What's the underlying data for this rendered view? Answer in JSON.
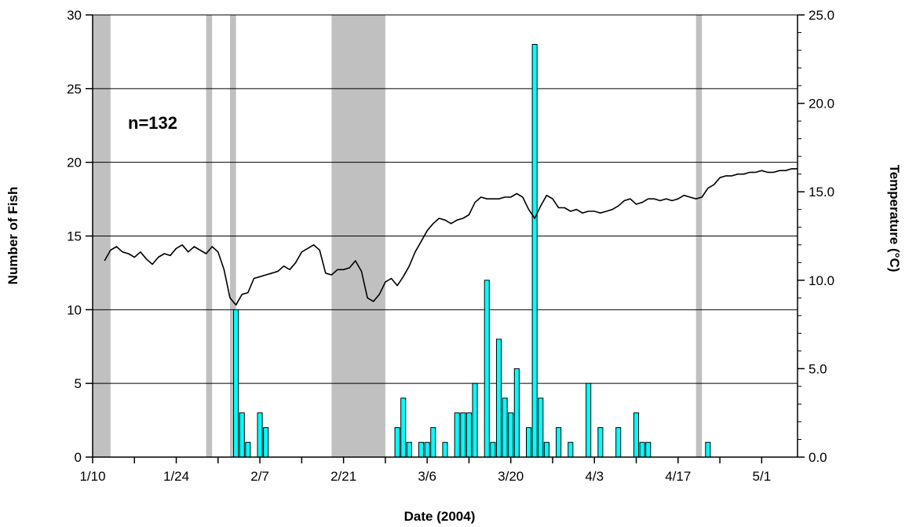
{
  "chart_data": {
    "type": "bar",
    "title": "",
    "xlabel": "Date (2004)",
    "ylabel": "Number of Fish",
    "y2label": "Temperature (°C)",
    "annotation": "n=132",
    "x_start": "1/10",
    "x_end": "5/7",
    "x_tick_labels": [
      "1/10",
      "1/24",
      "2/7",
      "2/21",
      "3/6",
      "3/20",
      "4/3",
      "4/17",
      "5/1"
    ],
    "ylim": [
      0,
      30
    ],
    "y_ticks": [
      0,
      5,
      10,
      15,
      20,
      25,
      30
    ],
    "y2lim": [
      0.0,
      25.0
    ],
    "y2_ticks": [
      "0.0",
      "5.0",
      "10.0",
      "15.0",
      "20.0",
      "25.0"
    ],
    "grid": true,
    "colors": {
      "bars": "#00ffff",
      "bar_edge": "#000000",
      "shaded": "#c0c0c0",
      "temperature_line": "#000000",
      "grid": "#000000"
    },
    "shaded_periods": [
      [
        "1/10",
        "1/13"
      ],
      [
        "1/29",
        "1/30"
      ],
      [
        "2/2",
        "2/3"
      ],
      [
        "2/19",
        "2/28"
      ],
      [
        "4/20",
        "4/21"
      ]
    ],
    "series": [
      {
        "type": "bar",
        "axis": "left",
        "points": [
          [
            "2/3",
            10
          ],
          [
            "2/4",
            3
          ],
          [
            "2/5",
            1
          ],
          [
            "2/7",
            3
          ],
          [
            "2/8",
            2
          ],
          [
            "3/1",
            2
          ],
          [
            "3/2",
            4
          ],
          [
            "3/3",
            1
          ],
          [
            "3/5",
            1
          ],
          [
            "3/6",
            1
          ],
          [
            "3/7",
            2
          ],
          [
            "3/9",
            1
          ],
          [
            "3/11",
            3
          ],
          [
            "3/12",
            3
          ],
          [
            "3/13",
            3
          ],
          [
            "3/14",
            5
          ],
          [
            "3/16",
            12
          ],
          [
            "3/17",
            1
          ],
          [
            "3/18",
            8
          ],
          [
            "3/19",
            4
          ],
          [
            "3/20",
            3
          ],
          [
            "3/21",
            6
          ],
          [
            "3/23",
            2
          ],
          [
            "3/24",
            28
          ],
          [
            "3/25",
            4
          ],
          [
            "3/26",
            1
          ],
          [
            "3/28",
            2
          ],
          [
            "3/30",
            1
          ],
          [
            "4/2",
            5
          ],
          [
            "4/4",
            2
          ],
          [
            "4/7",
            2
          ],
          [
            "4/10",
            3
          ],
          [
            "4/11",
            1
          ],
          [
            "4/12",
            1
          ],
          [
            "4/22",
            1
          ]
        ]
      },
      {
        "type": "line",
        "axis": "right",
        "points": [
          [
            "1/12",
            11.1
          ],
          [
            "1/13",
            11.7
          ],
          [
            "1/14",
            11.9
          ],
          [
            "1/15",
            11.6
          ],
          [
            "1/16",
            11.5
          ],
          [
            "1/17",
            11.3
          ],
          [
            "1/18",
            11.6
          ],
          [
            "1/19",
            11.2
          ],
          [
            "1/20",
            10.9
          ],
          [
            "1/21",
            11.3
          ],
          [
            "1/22",
            11.5
          ],
          [
            "1/23",
            11.4
          ],
          [
            "1/24",
            11.8
          ],
          [
            "1/25",
            12.0
          ],
          [
            "1/26",
            11.6
          ],
          [
            "1/27",
            11.9
          ],
          [
            "1/28",
            11.7
          ],
          [
            "1/29",
            11.5
          ],
          [
            "1/30",
            11.9
          ],
          [
            "1/31",
            11.6
          ],
          [
            "2/1",
            10.6
          ],
          [
            "2/2",
            9.0
          ],
          [
            "2/3",
            8.6
          ],
          [
            "2/4",
            9.2
          ],
          [
            "2/5",
            9.3
          ],
          [
            "2/6",
            10.1
          ],
          [
            "2/7",
            10.2
          ],
          [
            "2/8",
            10.3
          ],
          [
            "2/9",
            10.4
          ],
          [
            "2/10",
            10.5
          ],
          [
            "2/11",
            10.8
          ],
          [
            "2/12",
            10.6
          ],
          [
            "2/13",
            11.0
          ],
          [
            "2/14",
            11.6
          ],
          [
            "2/15",
            11.8
          ],
          [
            "2/16",
            12.0
          ],
          [
            "2/17",
            11.7
          ],
          [
            "2/18",
            10.4
          ],
          [
            "2/19",
            10.3
          ],
          [
            "2/20",
            10.6
          ],
          [
            "2/21",
            10.6
          ],
          [
            "2/22",
            10.7
          ],
          [
            "2/23",
            11.1
          ],
          [
            "2/24",
            10.5
          ],
          [
            "2/25",
            9.0
          ],
          [
            "2/26",
            8.8
          ],
          [
            "2/27",
            9.2
          ],
          [
            "2/28",
            9.9
          ],
          [
            "2/29",
            10.1
          ],
          [
            "3/1",
            9.7
          ],
          [
            "3/2",
            10.2
          ],
          [
            "3/3",
            10.8
          ],
          [
            "3/4",
            11.6
          ],
          [
            "3/5",
            12.2
          ],
          [
            "3/6",
            12.8
          ],
          [
            "3/7",
            13.2
          ],
          [
            "3/8",
            13.5
          ],
          [
            "3/9",
            13.4
          ],
          [
            "3/10",
            13.2
          ],
          [
            "3/11",
            13.4
          ],
          [
            "3/12",
            13.5
          ],
          [
            "3/13",
            13.7
          ],
          [
            "3/14",
            14.4
          ],
          [
            "3/15",
            14.7
          ],
          [
            "3/16",
            14.6
          ],
          [
            "3/17",
            14.6
          ],
          [
            "3/18",
            14.6
          ],
          [
            "3/19",
            14.7
          ],
          [
            "3/20",
            14.7
          ],
          [
            "3/21",
            14.9
          ],
          [
            "3/22",
            14.7
          ],
          [
            "3/23",
            14.0
          ],
          [
            "3/24",
            13.5
          ],
          [
            "3/25",
            14.2
          ],
          [
            "3/26",
            14.8
          ],
          [
            "3/27",
            14.6
          ],
          [
            "3/28",
            14.1
          ],
          [
            "3/29",
            14.1
          ],
          [
            "3/30",
            13.9
          ],
          [
            "3/31",
            14.0
          ],
          [
            "4/1",
            13.8
          ],
          [
            "4/2",
            13.9
          ],
          [
            "4/3",
            13.9
          ],
          [
            "4/4",
            13.8
          ],
          [
            "4/5",
            13.9
          ],
          [
            "4/6",
            14.0
          ],
          [
            "4/7",
            14.2
          ],
          [
            "4/8",
            14.5
          ],
          [
            "4/9",
            14.6
          ],
          [
            "4/10",
            14.3
          ],
          [
            "4/11",
            14.4
          ],
          [
            "4/12",
            14.6
          ],
          [
            "4/13",
            14.6
          ],
          [
            "4/14",
            14.5
          ],
          [
            "4/15",
            14.6
          ],
          [
            "4/16",
            14.5
          ],
          [
            "4/17",
            14.6
          ],
          [
            "4/18",
            14.8
          ],
          [
            "4/19",
            14.7
          ],
          [
            "4/20",
            14.6
          ],
          [
            "4/21",
            14.7
          ],
          [
            "4/22",
            15.2
          ],
          [
            "4/23",
            15.4
          ],
          [
            "4/24",
            15.8
          ],
          [
            "4/25",
            15.9
          ],
          [
            "4/26",
            15.9
          ],
          [
            "4/27",
            16.0
          ],
          [
            "4/28",
            16.0
          ],
          [
            "4/29",
            16.1
          ],
          [
            "4/30",
            16.1
          ],
          [
            "5/1",
            16.2
          ],
          [
            "5/2",
            16.1
          ],
          [
            "5/3",
            16.1
          ],
          [
            "5/4",
            16.2
          ],
          [
            "5/5",
            16.2
          ],
          [
            "5/6",
            16.3
          ],
          [
            "5/7",
            16.3
          ]
        ]
      }
    ]
  }
}
